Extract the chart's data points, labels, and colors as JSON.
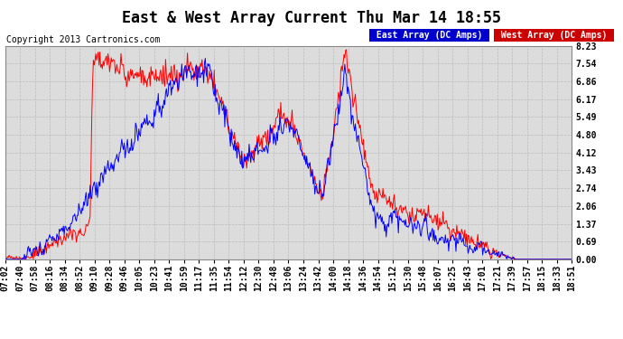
{
  "title": "East & West Array Current Thu Mar 14 18:55",
  "copyright": "Copyright 2013 Cartronics.com",
  "legend_east": {
    "label": "East Array (DC Amps)",
    "bg": "#0000cc"
  },
  "legend_west": {
    "label": "West Array (DC Amps)",
    "bg": "#cc0000"
  },
  "east_color": "#0000ff",
  "west_color": "#ff0000",
  "yticks": [
    0.0,
    0.69,
    1.37,
    2.06,
    2.74,
    3.43,
    4.12,
    4.8,
    5.49,
    6.17,
    6.86,
    7.54,
    8.23
  ],
  "ylim": [
    0.0,
    8.23
  ],
  "xtick_labels": [
    "07:02",
    "07:40",
    "07:58",
    "08:16",
    "08:34",
    "08:52",
    "09:10",
    "09:28",
    "09:46",
    "10:05",
    "10:23",
    "10:41",
    "10:59",
    "11:17",
    "11:35",
    "11:54",
    "12:12",
    "12:30",
    "12:48",
    "13:06",
    "13:24",
    "13:42",
    "14:00",
    "14:18",
    "14:36",
    "14:54",
    "15:12",
    "15:30",
    "15:48",
    "16:07",
    "16:25",
    "16:43",
    "17:01",
    "17:21",
    "17:39",
    "17:57",
    "18:15",
    "18:33",
    "18:51"
  ],
  "background_color": "#ffffff",
  "plot_bg": "#dcdcdc",
  "grid_color": "#bbbbbb",
  "title_fontsize": 12,
  "tick_fontsize": 7,
  "copyright_fontsize": 7,
  "legend_fontsize": 7
}
